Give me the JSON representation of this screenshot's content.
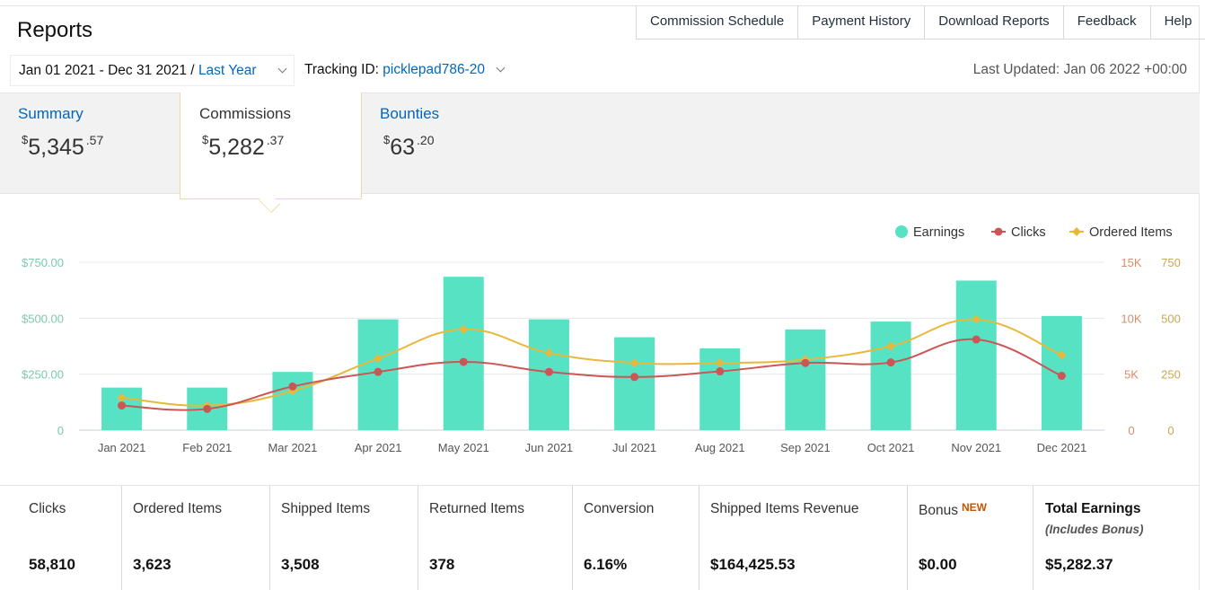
{
  "header": {
    "title": "Reports",
    "nav": [
      "Commission Schedule",
      "Payment History",
      "Download Reports",
      "Feedback",
      "Help"
    ]
  },
  "filters": {
    "date_range": "Jan 01 2021 - Dec 31 2021 /",
    "range_name": "Last Year",
    "tracking_label": "Tracking ID:",
    "tracking_id": "picklepad786-20",
    "last_updated": "Last Updated: Jan 06 2022 +00:00"
  },
  "tabs": [
    {
      "label": "Summary",
      "currency": "$",
      "whole": "5,345",
      "cents": ".57"
    },
    {
      "label": "Commissions",
      "currency": "$",
      "whole": "5,282",
      "cents": ".37"
    },
    {
      "label": "Bounties",
      "currency": "$",
      "whole": "63",
      "cents": ".20"
    }
  ],
  "chart_data": {
    "type": "bar",
    "categories": [
      "Jan 2021",
      "Feb 2021",
      "Mar 2021",
      "Apr 2021",
      "May 2021",
      "Jun 2021",
      "Jul 2021",
      "Aug 2021",
      "Sep 2021",
      "Oct 2021",
      "Nov 2021",
      "Dec 2021"
    ],
    "series": [
      {
        "name": "Earnings",
        "type": "bar",
        "axis": "left",
        "color": "#57e2c3",
        "values": [
          190,
          190,
          260,
          495,
          685,
          495,
          415,
          365,
          450,
          485,
          668,
          510
        ]
      },
      {
        "name": "Clicks",
        "type": "line",
        "axis": "right-clicks",
        "color": "#cc5555",
        "values": [
          2200,
          1900,
          3900,
          5200,
          6100,
          5200,
          4750,
          5250,
          6000,
          6050,
          8100,
          4850
        ]
      },
      {
        "name": "Ordered Items",
        "type": "line",
        "axis": "right-items",
        "color": "#e8b83c",
        "values": [
          145,
          110,
          175,
          320,
          450,
          345,
          300,
          300,
          315,
          375,
          495,
          335
        ]
      }
    ],
    "y_left": {
      "ticks": [
        "$750.00",
        "$500.00",
        "$250.00",
        "0"
      ],
      "range": [
        0,
        750
      ]
    },
    "y_right_clicks": {
      "ticks": [
        "15K",
        "10K",
        "5K",
        "0"
      ],
      "range": [
        0,
        15000
      ]
    },
    "y_right_items": {
      "ticks": [
        "750",
        "500",
        "250",
        "0"
      ],
      "range": [
        0,
        750
      ]
    },
    "grid": true,
    "legend": "top-right"
  },
  "stats": [
    {
      "label": "Clicks",
      "value": "58,810"
    },
    {
      "label": "Ordered Items",
      "value": "3,623"
    },
    {
      "label": "Shipped Items",
      "value": "3,508"
    },
    {
      "label": "Returned Items",
      "value": "378"
    },
    {
      "label": "Conversion",
      "value": "6.16%"
    },
    {
      "label": "Shipped Items Revenue",
      "value": "$164,425.53"
    },
    {
      "label": "Bonus",
      "badge": "NEW",
      "value": "$0.00"
    },
    {
      "label": "Total Earnings",
      "sub": "(Includes Bonus)",
      "value": "$5,282.37"
    }
  ]
}
